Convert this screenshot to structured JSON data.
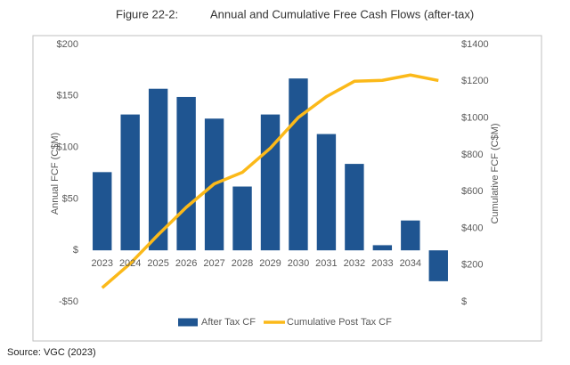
{
  "chart_data": {
    "type": "bar",
    "figure_label": "Figure 22-2:",
    "title": "Annual and Cumulative Free Cash Flows (after-tax)",
    "y_label": "Annual FCF (C$M)",
    "y2_label": "Cumulative FCF (C$M)",
    "source": "Source: VGC (2023)",
    "categories": [
      "2023",
      "2024",
      "2025",
      "2026",
      "2027",
      "2028",
      "2029",
      "2030",
      "2031",
      "2032",
      "2033",
      "2034",
      null
    ],
    "series": [
      {
        "name": "After Tax CF",
        "type": "bar",
        "color": "#1f5591",
        "values": [
          76,
          132,
          157,
          149,
          128,
          62,
          132,
          167,
          113,
          84,
          5,
          29,
          -30
        ]
      },
      {
        "name": "Cumulative Post Tax CF",
        "type": "line",
        "axis": "y2",
        "color": "#fbb919",
        "values": [
          76,
          208,
          365,
          514,
          642,
          704,
          836,
          1003,
          1116,
          1200,
          1205,
          1234,
          1204
        ]
      }
    ],
    "ylim": [
      -50,
      200
    ],
    "yticks": [
      {
        "value": -50,
        "label": "-$50"
      },
      {
        "value": 0,
        "label": "$"
      },
      {
        "value": 50,
        "label": "$50"
      },
      {
        "value": 100,
        "label": "$100"
      },
      {
        "value": 150,
        "label": "$150"
      },
      {
        "value": 200,
        "label": "$200"
      }
    ],
    "y2lim": [
      0,
      1400
    ],
    "y2ticks": [
      {
        "value": 0,
        "label": "$"
      },
      {
        "value": 200,
        "label": "$200"
      },
      {
        "value": 400,
        "label": "$400"
      },
      {
        "value": 600,
        "label": "$600"
      },
      {
        "value": 800,
        "label": "$800"
      },
      {
        "value": 1000,
        "label": "$1000"
      },
      {
        "value": 1200,
        "label": "$1200"
      },
      {
        "value": 1400,
        "label": "$1400"
      }
    ],
    "grid": false
  }
}
